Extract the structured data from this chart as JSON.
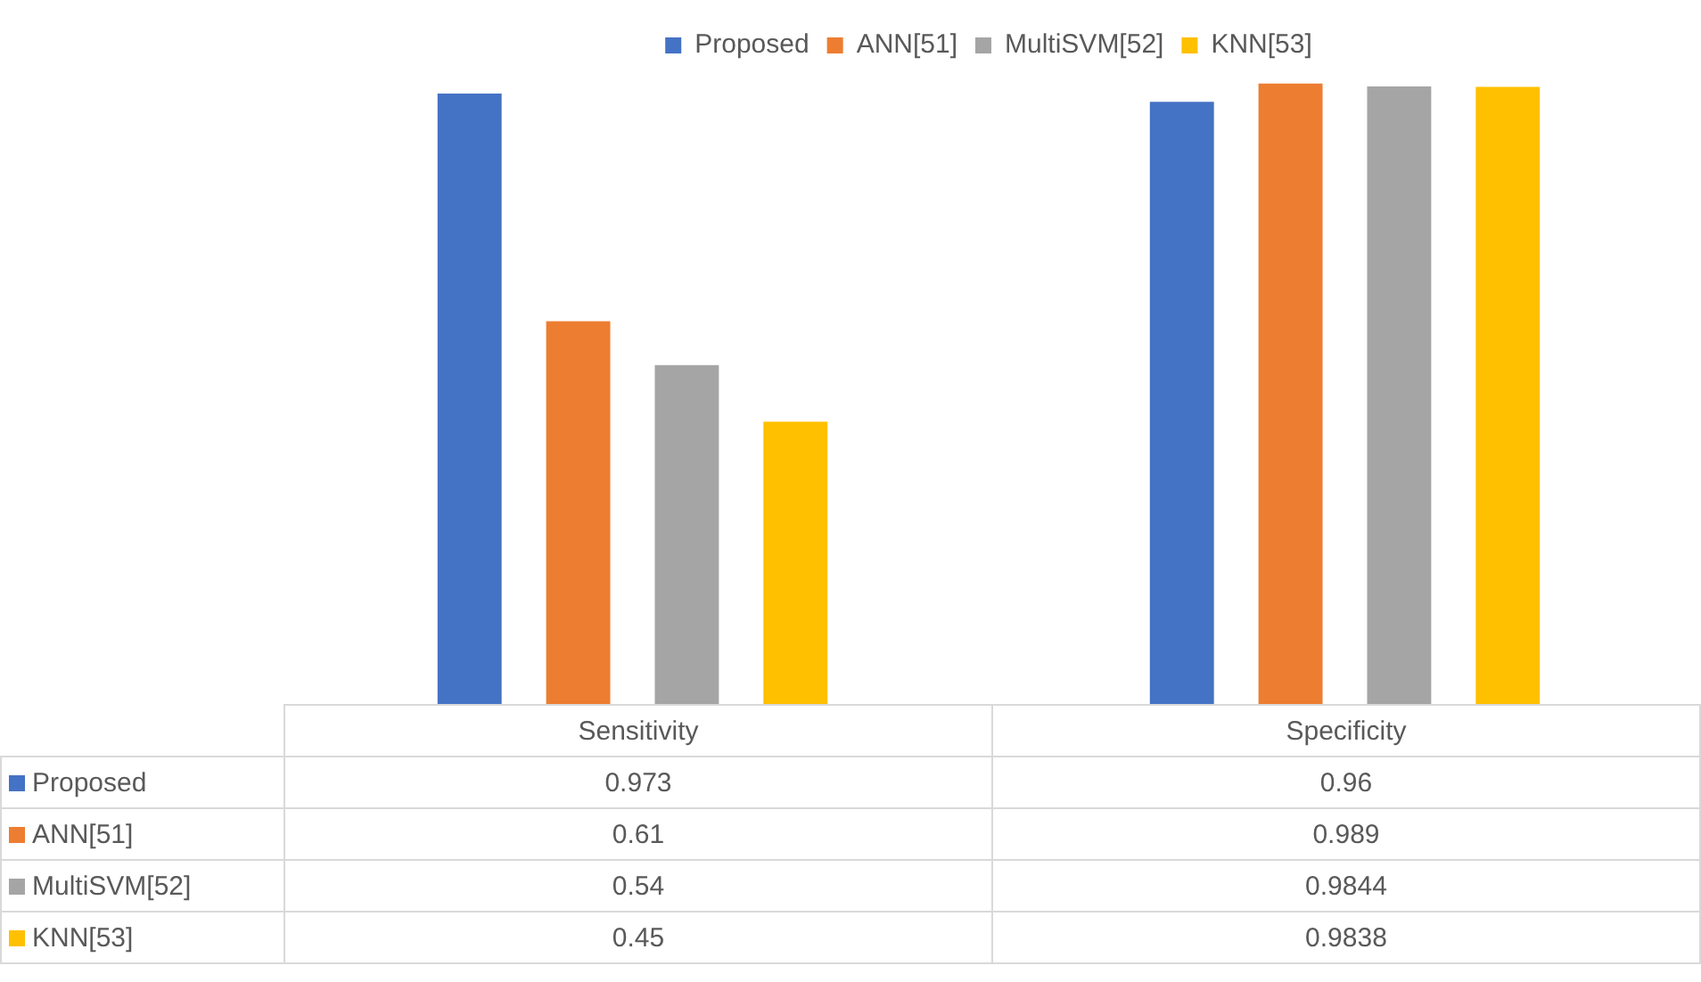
{
  "chart_data": {
    "type": "bar",
    "categories": [
      "Sensitivity",
      "Specificity"
    ],
    "series": [
      {
        "name": "Proposed",
        "color": "#4472c4",
        "values": [
          0.973,
          0.96
        ]
      },
      {
        "name": "ANN[51]",
        "color": "#ed7d31",
        "values": [
          0.61,
          0.989
        ]
      },
      {
        "name": "MultiSVM[52]",
        "color": "#a5a5a5",
        "values": [
          0.54,
          0.9844
        ]
      },
      {
        "name": "KNN[53]",
        "color": "#ffc000",
        "values": [
          0.45,
          0.9838
        ]
      }
    ],
    "legend": "top",
    "data_labels": true
  }
}
